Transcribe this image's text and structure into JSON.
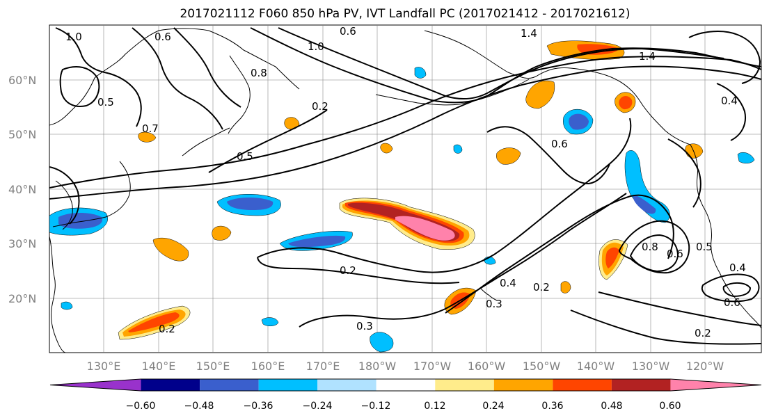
{
  "title": "2017021112 F060 850 hPa PV, IVT Landfall PC (2017021412 - 2017021612)",
  "map": {
    "lat_labels": [
      "20°N",
      "30°N",
      "40°N",
      "50°N",
      "60°N"
    ],
    "lon_labels": [
      "130°E",
      "140°E",
      "150°E",
      "160°E",
      "170°E",
      "180°W",
      "170°W",
      "160°W",
      "150°W",
      "140°W",
      "130°W",
      "120°W"
    ],
    "contour_labels": [
      "1.0",
      "0.6",
      "1.4",
      "1.0",
      "0.8",
      "0.6",
      "0.2",
      "0.5",
      "0.7",
      "0.6",
      "0.5",
      "0.8",
      "0.6",
      "0.5",
      "0.4",
      "0.2",
      "0.3",
      "0.4",
      "0.2",
      "0.3",
      "0.2",
      "0.2",
      "0.6",
      "0.4",
      "1.4"
    ]
  },
  "colorbar": {
    "colors": [
      "#9932cc",
      "#00008b",
      "#3a5fcd",
      "#00bfff",
      "#b0e2ff",
      "#ffffff",
      "#ffec8b",
      "#ffa500",
      "#ff4500",
      "#b22222",
      "#ff82ab"
    ],
    "ticks": [
      "−0.60",
      "−0.48",
      "−0.36",
      "−0.24",
      "−0.12",
      "0.12",
      "0.24",
      "0.36",
      "0.48",
      "0.60"
    ]
  }
}
